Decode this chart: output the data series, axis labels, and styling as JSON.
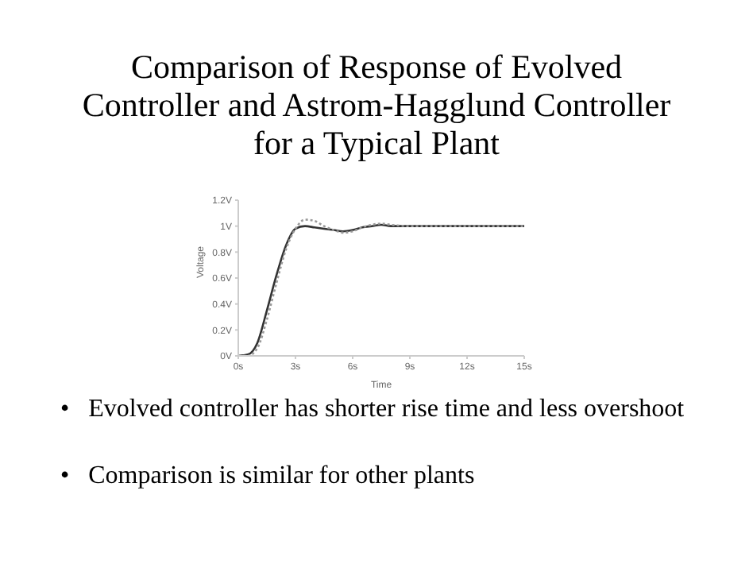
{
  "chart_data": {
    "type": "line",
    "title": "Comparison of Response of Evolved Controller and Astrom-Hagglund Controller for a Typical Plant",
    "xlabel": "Time",
    "ylabel": "Voltage",
    "annotations": [
      "•   Evolved controller has shorter rise time and less overshoot",
      "•   Comparison is similar for other plants"
    ],
    "x": [
      0,
      0.5,
      1,
      1.5,
      2,
      2.5,
      3,
      3.5,
      4,
      4.5,
      5,
      5.5,
      6,
      6.5,
      7,
      7.5,
      8,
      9,
      10,
      12,
      15
    ],
    "series": [
      {
        "color": "#333333",
        "line_style": "solid",
        "values": [
          0,
          0.01,
          0.1,
          0.35,
          0.62,
          0.85,
          0.98,
          1.0,
          0.99,
          0.98,
          0.97,
          0.96,
          0.97,
          0.99,
          1.0,
          1.01,
          1.0,
          1.0,
          1.0,
          1.0,
          1.0
        ]
      },
      {
        "color": "#999999",
        "line_style": "dotted",
        "values": [
          0,
          0.0,
          0.06,
          0.28,
          0.56,
          0.82,
          0.98,
          1.05,
          1.04,
          1.0,
          0.97,
          0.95,
          0.96,
          0.99,
          1.01,
          1.02,
          1.01,
          1.0,
          1.0,
          1.0,
          1.0
        ]
      }
    ],
    "xlim": [
      0,
      15
    ],
    "xticks": [
      {
        "value": 0,
        "label": "0s"
      },
      {
        "value": 3,
        "label": "3s"
      },
      {
        "value": 6,
        "label": "6s"
      },
      {
        "value": 9,
        "label": "9s"
      },
      {
        "value": 12,
        "label": "12s"
      },
      {
        "value": 15,
        "label": "15s"
      }
    ],
    "ylim": [
      0,
      1.2
    ],
    "yticks": [
      {
        "value": 0,
        "label": "0V"
      },
      {
        "value": 0.2,
        "label": "0.2V"
      },
      {
        "value": 0.4,
        "label": "0.4V"
      },
      {
        "value": 0.6,
        "label": "0.6V"
      },
      {
        "value": 0.8,
        "label": "0.8V"
      },
      {
        "value": 1,
        "label": "1V"
      },
      {
        "value": 1.2,
        "label": "1.2V"
      }
    ],
    "grid": false,
    "legend": false,
    "marker": "none"
  }
}
